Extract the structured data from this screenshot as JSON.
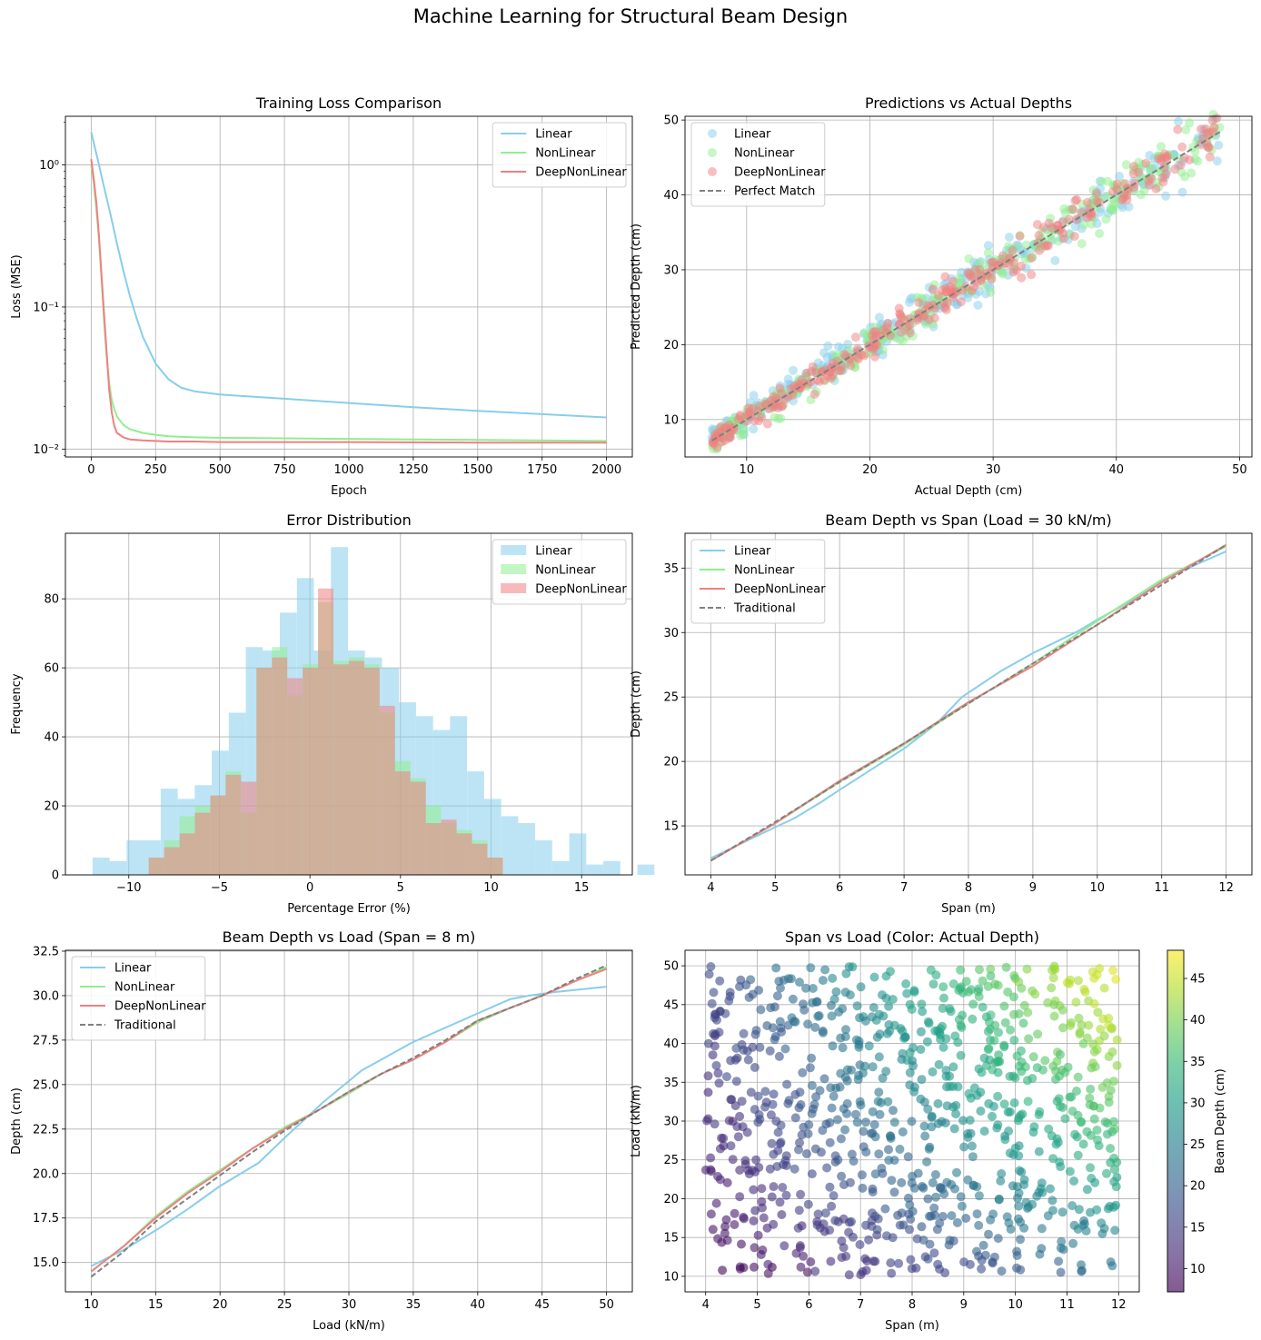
{
  "figure_title": "Machine Learning for Structural Beam Design",
  "colors": {
    "linear": "#87ceeb",
    "nonlinear": "#90ee90",
    "deepnonlinear": "#f08080",
    "traditional": "#808080",
    "grid": "#b0b0b0"
  },
  "chart_data": [
    {
      "type": "line",
      "title": "Training Loss Comparison",
      "xlabel": "Epoch",
      "ylabel": "Loss (MSE)",
      "yscale": "log",
      "xlim": [
        -100,
        2100
      ],
      "ylim": [
        0.0088,
        2.2
      ],
      "xticks": [
        0,
        250,
        500,
        750,
        1000,
        1250,
        1500,
        1750,
        2000
      ],
      "yticks": [
        0.01,
        0.1,
        1
      ],
      "ytick_labels": [
        "10⁻²",
        "10⁻¹",
        "10⁰"
      ],
      "legend_position": "top-right",
      "series": [
        {
          "name": "Linear",
          "color": "#87ceeb",
          "x": [
            0,
            25,
            50,
            75,
            100,
            125,
            150,
            175,
            200,
            250,
            300,
            350,
            400,
            500,
            750,
            1000,
            1250,
            1500,
            1750,
            2000
          ],
          "y": [
            1.7,
            1.1,
            0.7,
            0.45,
            0.28,
            0.18,
            0.12,
            0.085,
            0.062,
            0.04,
            0.031,
            0.027,
            0.0255,
            0.0242,
            0.0226,
            0.0211,
            0.0197,
            0.0186,
            0.0176,
            0.0167
          ]
        },
        {
          "name": "NonLinear",
          "color": "#90ee90",
          "x": [
            0,
            10,
            20,
            30,
            40,
            50,
            60,
            70,
            80,
            90,
            100,
            125,
            150,
            200,
            250,
            300,
            400,
            500,
            750,
            1000,
            1500,
            2000
          ],
          "y": [
            1.0,
            0.75,
            0.5,
            0.3,
            0.16,
            0.08,
            0.045,
            0.029,
            0.022,
            0.019,
            0.017,
            0.0148,
            0.0138,
            0.013,
            0.0126,
            0.0123,
            0.0121,
            0.012,
            0.0119,
            0.0118,
            0.0116,
            0.0114
          ]
        },
        {
          "name": "DeepNonLinear",
          "color": "#f08080",
          "x": [
            0,
            10,
            20,
            30,
            40,
            50,
            60,
            70,
            80,
            90,
            100,
            125,
            150,
            200,
            250,
            300,
            400,
            500,
            750,
            1000,
            1500,
            2000
          ],
          "y": [
            1.1,
            0.8,
            0.55,
            0.32,
            0.17,
            0.09,
            0.048,
            0.026,
            0.018,
            0.0145,
            0.013,
            0.0121,
            0.0117,
            0.0115,
            0.0114,
            0.0113,
            0.0113,
            0.0112,
            0.0112,
            0.0112,
            0.0111,
            0.0111
          ]
        }
      ]
    },
    {
      "type": "scatter",
      "title": "Predictions vs Actual Depths",
      "xlabel": "Actual Depth (cm)",
      "ylabel": "Predicted Depth (cm)",
      "xlim": [
        5.0,
        51.0
      ],
      "ylim": [
        5.0,
        50.5
      ],
      "xticks": [
        10,
        20,
        30,
        40,
        50
      ],
      "yticks": [
        10,
        20,
        30,
        40,
        50
      ],
      "legend_position": "top-left",
      "point_count_per_series": 300,
      "actual_range": [
        7.2,
        48.4
      ],
      "series": [
        {
          "name": "Linear",
          "color": "#87ceeb",
          "slope": 0.985,
          "intercept": 0.6,
          "spread": 1.1
        },
        {
          "name": "NonLinear",
          "color": "#90ee90",
          "slope": 1.0,
          "intercept": 0.0,
          "spread": 0.9
        },
        {
          "name": "DeepNonLinear",
          "color": "#f08080",
          "slope": 1.0,
          "intercept": 0.0,
          "spread": 0.9
        }
      ],
      "reference_line": {
        "name": "Perfect Match",
        "color": "#808080",
        "x": [
          7.2,
          48.4
        ],
        "y": [
          7.2,
          48.4
        ]
      }
    },
    {
      "type": "histogram",
      "title": "Error Distribution",
      "xlabel": "Percentage Error (%)",
      "ylabel": "Frequency",
      "xlim": [
        -13.5,
        17.8
      ],
      "ylim": [
        0,
        99
      ],
      "xticks": [
        -10,
        -5,
        0,
        5,
        10,
        15
      ],
      "yticks": [
        0,
        20,
        40,
        60,
        80
      ],
      "legend_position": "top-right",
      "series": [
        {
          "name": "Linear",
          "color": "#87ceeb",
          "bin_start": -12.0,
          "bin_width": 0.94,
          "counts": [
            5,
            4,
            10,
            10,
            25,
            22,
            26,
            36,
            47,
            66,
            65,
            76,
            86,
            65,
            95,
            65,
            63,
            60,
            50,
            46,
            42,
            46,
            30,
            22,
            17,
            15,
            10,
            4,
            12,
            3,
            4,
            0,
            3
          ]
        },
        {
          "name": "NonLinear",
          "color": "#90ee90",
          "bin_start": -8.9,
          "bin_width": 0.85,
          "counts": [
            5,
            10,
            17,
            20,
            23,
            30,
            18,
            60,
            66,
            52,
            61,
            79,
            62,
            63,
            61,
            47,
            33,
            28,
            20,
            15,
            13,
            10,
            5
          ]
        },
        {
          "name": "DeepNonLinear",
          "color": "#f08080",
          "bin_start": -8.9,
          "bin_width": 0.85,
          "counts": [
            5,
            8,
            12,
            18,
            23,
            29,
            27,
            60,
            63,
            57,
            60,
            83,
            61,
            62,
            60,
            49,
            30,
            27,
            15,
            16,
            12,
            9,
            5
          ]
        }
      ]
    },
    {
      "type": "line",
      "title": "Beam Depth vs Span (Load = 30 kN/m)",
      "xlabel": "Span (m)",
      "ylabel": "Depth (cm)",
      "xlim": [
        3.6,
        12.4
      ],
      "ylim": [
        11.2,
        37.7
      ],
      "xticks": [
        4,
        5,
        6,
        7,
        8,
        9,
        10,
        11,
        12
      ],
      "yticks": [
        15,
        20,
        25,
        30,
        35
      ],
      "legend_position": "top-left",
      "series": [
        {
          "name": "Linear",
          "color": "#87ceeb",
          "x": [
            4.0,
            4.5,
            5.0,
            5.3,
            5.7,
            6.0,
            6.5,
            7.0,
            7.5,
            7.9,
            8.5,
            9.0,
            9.7,
            10.0,
            10.5,
            11.0,
            11.5,
            12.0
          ],
          "y": [
            12.5,
            13.7,
            14.9,
            15.6,
            16.8,
            17.8,
            19.4,
            21.0,
            22.9,
            25.0,
            27.0,
            28.4,
            30.1,
            31.0,
            32.4,
            34.0,
            35.2,
            36.3
          ]
        },
        {
          "name": "NonLinear",
          "color": "#90ee90",
          "x": [
            4,
            5,
            6,
            7,
            8,
            9,
            10,
            11,
            12
          ],
          "y": [
            12.3,
            15.2,
            18.4,
            21.3,
            24.5,
            27.6,
            30.9,
            34.1,
            36.7
          ]
        },
        {
          "name": "DeepNonLinear",
          "color": "#f08080",
          "x": [
            4,
            5,
            6,
            7,
            8,
            9,
            10,
            11,
            12
          ],
          "y": [
            12.3,
            15.2,
            18.5,
            21.4,
            24.6,
            27.4,
            30.6,
            33.9,
            36.8
          ]
        },
        {
          "name": "Traditional",
          "color": "#808080",
          "dashed": true,
          "x": [
            4,
            5,
            6,
            7,
            8,
            9,
            10,
            11,
            12
          ],
          "y": [
            12.3,
            15.3,
            18.4,
            21.4,
            24.5,
            27.6,
            30.6,
            33.7,
            36.8
          ]
        }
      ]
    },
    {
      "type": "line",
      "title": "Beam Depth vs Load (Span = 8 m)",
      "xlabel": "Load (kN/m)",
      "ylabel": "Depth (cm)",
      "xlim": [
        8.0,
        52.0
      ],
      "ylim": [
        13.35,
        32.55
      ],
      "xticks": [
        10,
        15,
        20,
        25,
        30,
        35,
        40,
        45,
        50
      ],
      "yticks": [
        15.0,
        17.5,
        20.0,
        22.5,
        25.0,
        27.5,
        30.0,
        32.5
      ],
      "ytick_labels": [
        "15.0",
        "17.5",
        "20.0",
        "22.5",
        "25.0",
        "27.5",
        "30.0",
        "32.5"
      ],
      "legend_position": "top-left",
      "series": [
        {
          "name": "Linear",
          "color": "#87ceeb",
          "x": [
            10,
            12.5,
            15,
            17.5,
            20,
            23,
            25,
            28,
            31,
            35,
            40,
            42.5,
            44,
            46,
            50
          ],
          "y": [
            14.8,
            15.7,
            16.8,
            18.0,
            19.3,
            20.6,
            22.0,
            24.0,
            25.8,
            27.4,
            29.0,
            29.8,
            30.0,
            30.2,
            30.5
          ]
        },
        {
          "name": "NonLinear",
          "color": "#90ee90",
          "x": [
            10,
            12.5,
            15,
            17.5,
            20,
            22.5,
            25,
            27.5,
            30,
            32.5,
            35,
            37.5,
            40,
            42.5,
            45,
            47.5,
            50
          ],
          "y": [
            14.5,
            15.9,
            17.6,
            19.0,
            20.2,
            21.4,
            22.6,
            23.5,
            24.5,
            25.6,
            26.4,
            27.4,
            28.5,
            29.3,
            30.0,
            30.8,
            31.6
          ]
        },
        {
          "name": "DeepNonLinear",
          "color": "#f08080",
          "x": [
            10,
            12.5,
            15,
            17.5,
            20,
            22.5,
            25,
            27.5,
            30,
            32.5,
            35,
            37.5,
            40,
            42.5,
            45,
            47.5,
            50
          ],
          "y": [
            14.5,
            15.9,
            17.5,
            18.9,
            20.1,
            21.4,
            22.5,
            23.5,
            24.6,
            25.6,
            26.4,
            27.4,
            28.6,
            29.3,
            30.0,
            30.8,
            31.5
          ]
        },
        {
          "name": "Traditional",
          "color": "#808080",
          "dashed": true,
          "x": [
            10,
            12.5,
            15,
            17.5,
            20,
            22.5,
            25,
            27.5,
            30,
            32.5,
            35,
            37.5,
            40,
            42.5,
            45,
            47.5,
            50
          ],
          "y": [
            14.2,
            15.6,
            17.3,
            18.6,
            19.9,
            21.2,
            22.4,
            23.5,
            24.6,
            25.6,
            26.5,
            27.5,
            28.6,
            29.3,
            30.0,
            30.9,
            31.7
          ]
        }
      ]
    },
    {
      "type": "scatter",
      "title": "Span vs Load (Color: Actual Depth)",
      "xlabel": "Span (m)",
      "ylabel": "Load (kN/m)",
      "xlim": [
        3.6,
        12.4
      ],
      "ylim": [
        8.0,
        52.0
      ],
      "xticks": [
        4,
        5,
        6,
        7,
        8,
        9,
        10,
        11,
        12
      ],
      "yticks": [
        10,
        15,
        20,
        25,
        30,
        35,
        40,
        45,
        50
      ],
      "point_count": 900,
      "span_range": [
        4,
        12
      ],
      "load_range": [
        10,
        50
      ],
      "colorbar": {
        "label": "Beam Depth (cm)",
        "range": [
          7.2,
          48.4
        ],
        "ticks": [
          10,
          15,
          20,
          25,
          30,
          35,
          40,
          45
        ],
        "colormap": "viridis",
        "colormap_stops": [
          "#440154",
          "#482878",
          "#3e4989",
          "#31688e",
          "#26828e",
          "#1f9e89",
          "#35b779",
          "#6ece58",
          "#b5de2b",
          "#fde725"
        ]
      }
    }
  ]
}
